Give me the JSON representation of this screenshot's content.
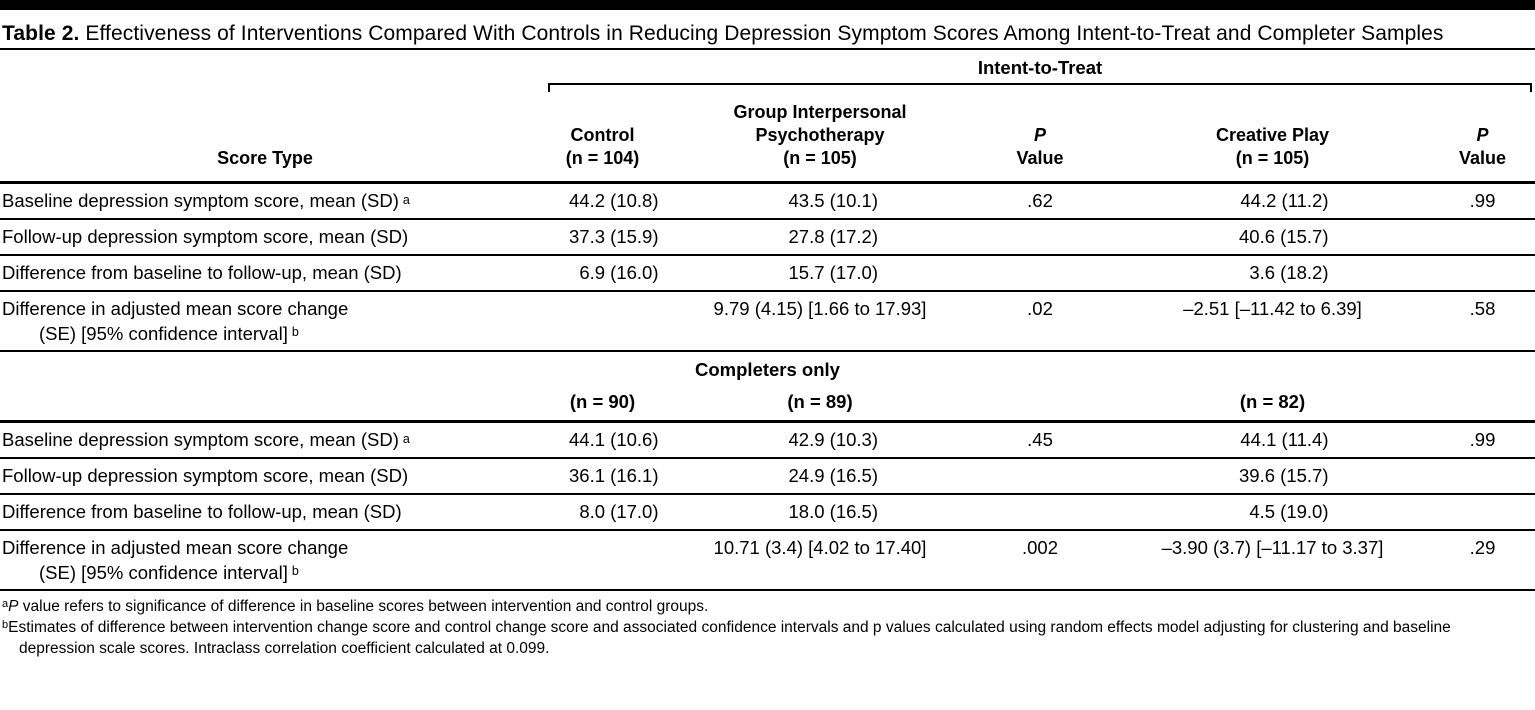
{
  "title": {
    "label": "Table 2.",
    "text": " Effectiveness of Interventions Compared With Controls in Reducing Depression Symptom Scores Among Intent-to-Treat and Completer Samples"
  },
  "columns": {
    "score_type": "Score Type",
    "control": [
      "Control",
      "(n = 104)"
    ],
    "gipt": [
      "Group Interpersonal",
      "Psychotherapy",
      "(n = 105)"
    ],
    "p": [
      "P",
      "Value"
    ],
    "creative": [
      "Creative Play",
      "(n = 105)"
    ]
  },
  "itt": {
    "section_label": "Intent-to-Treat",
    "rows": [
      {
        "label": "Baseline depression symptom score, mean (SD)",
        "sup": "a",
        "control": "44.2 (10.8)",
        "gipt": "43.5 (10.1)",
        "p1": ".62",
        "creative": "44.2 (11.2)",
        "p2": ".99"
      },
      {
        "label": "Follow-up depression symptom score, mean (SD)",
        "sup": "",
        "control": "37.3 (15.9)",
        "gipt": "27.8 (17.2)",
        "p1": "",
        "creative": "40.6 (15.7)",
        "p2": ""
      },
      {
        "label": "Difference from baseline to follow-up, mean (SD)",
        "sup": "",
        "control": "6.9 (16.0)",
        "gipt": "15.7 (17.0)",
        "p1": "",
        "creative": "3.6 (18.2)",
        "p2": ""
      },
      {
        "label_line1": "Difference in adjusted mean score change",
        "label_line2": "(SE) [95% confidence interval]",
        "sup": "b",
        "control": "",
        "gipt": "9.79 (4.15) [1.66 to 17.93]",
        "p1": ".02",
        "creative": "–2.51 [–11.42 to 6.39]",
        "p2": ".58"
      }
    ]
  },
  "completers": {
    "section_label": "Completers only",
    "n_row": {
      "control": "(n = 90)",
      "gipt": "(n = 89)",
      "creative": "(n = 82)"
    },
    "rows": [
      {
        "label": "Baseline depression symptom score, mean (SD)",
        "sup": "a",
        "control": "44.1 (10.6)",
        "gipt": "42.9 (10.3)",
        "p1": ".45",
        "creative": "44.1 (11.4)",
        "p2": ".99"
      },
      {
        "label": "Follow-up depression symptom score, mean (SD)",
        "sup": "",
        "control": "36.1 (16.1)",
        "gipt": "24.9 (16.5)",
        "p1": "",
        "creative": "39.6 (15.7)",
        "p2": ""
      },
      {
        "label": "Difference from baseline to follow-up, mean (SD)",
        "sup": "",
        "control": "8.0 (17.0)",
        "gipt": "18.0 (16.5)",
        "p1": "",
        "creative": "4.5 (19.0)",
        "p2": ""
      },
      {
        "label_line1": "Difference in adjusted mean score change",
        "label_line2": "(SE) [95% confidence interval]",
        "sup": "b",
        "control": "",
        "gipt": "10.71 (3.4) [4.02 to 17.40]",
        "p1": ".002",
        "creative": "–3.90 (3.7) [–11.17 to 3.37]",
        "p2": ".29"
      }
    ]
  },
  "footnotes": {
    "a": {
      "sup": "a",
      "italic": "P",
      "text": " value refers to significance of difference in baseline scores between intervention and control groups."
    },
    "b": {
      "sup": "b",
      "text": "Estimates of difference between intervention change score and control change score and associated confidence intervals and p values calculated using random effects model adjusting for clustering and baseline depression scale scores. Intraclass correlation coefficient calculated at 0.099."
    }
  }
}
